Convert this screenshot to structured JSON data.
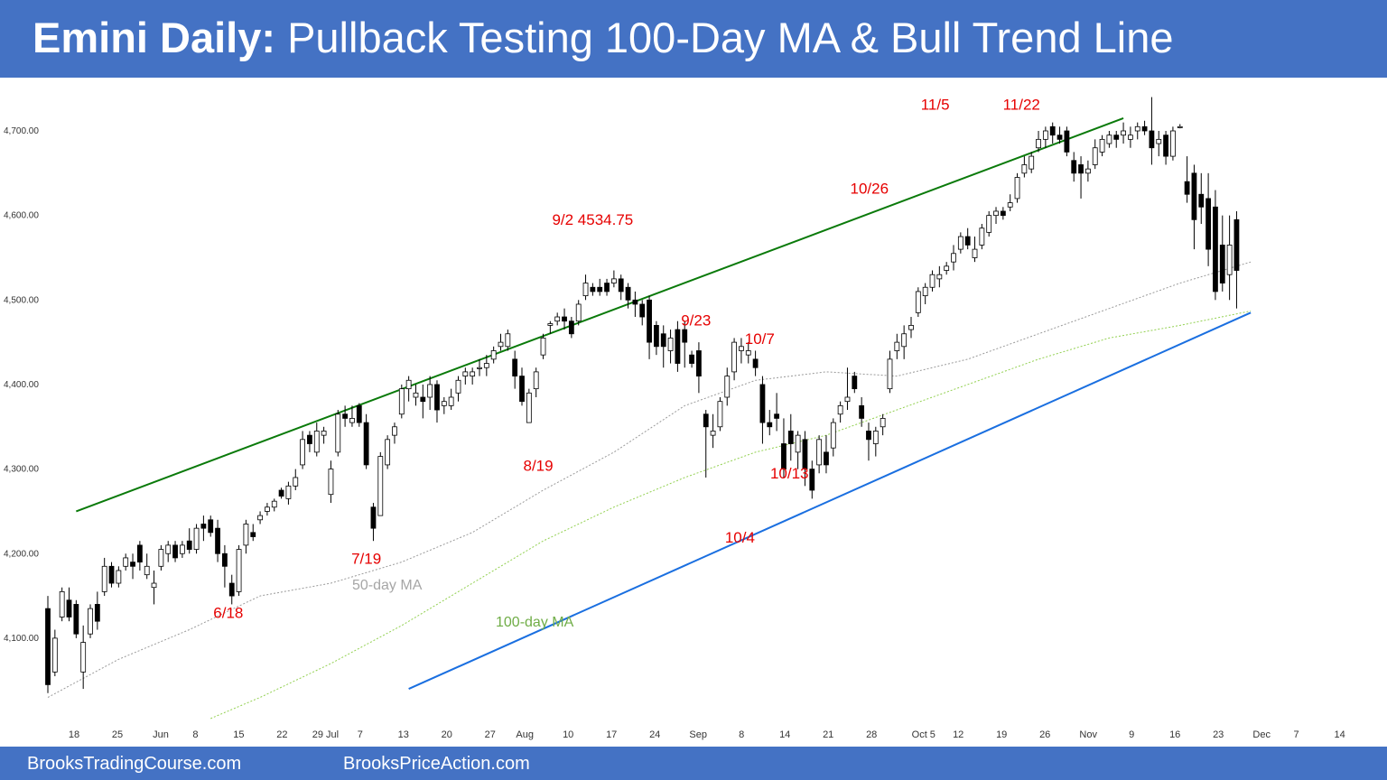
{
  "header": {
    "title_bold": "Emini Daily:",
    "title_rest": " Pullback Testing 100-Day MA & Bull Trend Line"
  },
  "footer": {
    "left": "BrooksTradingCourse.com",
    "right": "BrooksPriceAction.com"
  },
  "colors": {
    "header_bg": "#4472c4",
    "bull_trend_line": "#0a7a0a",
    "support_line": "#1a6fe0",
    "ma50": "#9a9a9a",
    "ma100": "#92d050",
    "annotation": "#e60000"
  },
  "chart_data": {
    "type": "candlestick",
    "title": "Emini Daily: Pullback Testing 100-Day MA & Bull Trend Line",
    "ylim": [
      4000,
      4760
    ],
    "y_ticks": [
      4100,
      4200,
      4300,
      4400,
      4500,
      4600,
      4700
    ],
    "y_tick_labels": [
      "4,100.00",
      "4,200.00",
      "4,300.00",
      "4,400.00",
      "4,500.00",
      "4,600.00",
      "4,700.00"
    ],
    "x_tick_labels": [
      "18",
      "25",
      "Jun",
      "8",
      "15",
      "22",
      "29 Jul",
      "7",
      "13",
      "20",
      "27",
      "Aug",
      "10",
      "17",
      "24",
      "Sep",
      "8",
      "14",
      "21",
      "28",
      "Oct 5",
      "12",
      "19",
      "26",
      "Nov",
      "9",
      "16",
      "23",
      "Dec",
      "7",
      "14"
    ],
    "candles": [
      [
        4135,
        4150,
        4035,
        4045
      ],
      [
        4060,
        4110,
        4055,
        4100
      ],
      [
        4125,
        4160,
        4120,
        4155
      ],
      [
        4145,
        4160,
        4120,
        4125
      ],
      [
        4140,
        4145,
        4100,
        4105
      ],
      [
        4060,
        4115,
        4040,
        4095
      ],
      [
        4105,
        4140,
        4100,
        4135
      ],
      [
        4140,
        4155,
        4110,
        4120
      ],
      [
        4155,
        4195,
        4150,
        4185
      ],
      [
        4185,
        4190,
        4160,
        4165
      ],
      [
        4165,
        4185,
        4160,
        4180
      ],
      [
        4185,
        4200,
        4180,
        4195
      ],
      [
        4190,
        4200,
        4170,
        4185
      ],
      [
        4210,
        4215,
        4180,
        4190
      ],
      [
        4175,
        4200,
        4170,
        4185
      ],
      [
        4160,
        4180,
        4140,
        4165
      ],
      [
        4185,
        4210,
        4180,
        4205
      ],
      [
        4200,
        4215,
        4190,
        4210
      ],
      [
        4210,
        4215,
        4190,
        4195
      ],
      [
        4200,
        4215,
        4195,
        4210
      ],
      [
        4215,
        4230,
        4200,
        4205
      ],
      [
        4205,
        4235,
        4200,
        4230
      ],
      [
        4235,
        4245,
        4215,
        4230
      ],
      [
        4240,
        4245,
        4220,
        4225
      ],
      [
        4230,
        4240,
        4190,
        4200
      ],
      [
        4200,
        4210,
        4160,
        4185
      ],
      [
        4165,
        4175,
        4140,
        4150
      ],
      [
        4155,
        4210,
        4150,
        4205
      ],
      [
        4210,
        4240,
        4200,
        4235
      ],
      [
        4225,
        4235,
        4215,
        4220
      ],
      [
        4240,
        4250,
        4235,
        4245
      ],
      [
        4250,
        4260,
        4245,
        4255
      ],
      [
        4255,
        4265,
        4250,
        4262
      ],
      [
        4275,
        4278,
        4265,
        4268
      ],
      [
        4265,
        4285,
        4258,
        4280
      ],
      [
        4280,
        4300,
        4275,
        4290
      ],
      [
        4305,
        4345,
        4300,
        4335
      ],
      [
        4340,
        4345,
        4320,
        4330
      ],
      [
        4320,
        4355,
        4315,
        4345
      ],
      [
        4340,
        4350,
        4330,
        4345
      ],
      [
        4270,
        4310,
        4260,
        4300
      ],
      [
        4320,
        4370,
        4315,
        4365
      ],
      [
        4365,
        4375,
        4350,
        4360
      ],
      [
        4355,
        4375,
        4350,
        4360
      ],
      [
        4375,
        4378,
        4350,
        4355
      ],
      [
        4355,
        4365,
        4300,
        4305
      ],
      [
        4255,
        4260,
        4215,
        4230
      ],
      [
        4245,
        4320,
        4245,
        4315
      ],
      [
        4305,
        4340,
        4300,
        4335
      ],
      [
        4340,
        4355,
        4330,
        4350
      ],
      [
        4365,
        4400,
        4360,
        4395
      ],
      [
        4395,
        4410,
        4380,
        4405
      ],
      [
        4385,
        4400,
        4375,
        4390
      ],
      [
        4385,
        4400,
        4360,
        4380
      ],
      [
        4385,
        4410,
        4370,
        4400
      ],
      [
        4400,
        4405,
        4355,
        4370
      ],
      [
        4375,
        4385,
        4365,
        4380
      ],
      [
        4375,
        4395,
        4370,
        4385
      ],
      [
        4390,
        4410,
        4380,
        4405
      ],
      [
        4410,
        4420,
        4400,
        4415
      ],
      [
        4410,
        4420,
        4400,
        4415
      ],
      [
        4420,
        4430,
        4410,
        4420
      ],
      [
        4420,
        4435,
        4410,
        4425
      ],
      [
        4430,
        4445,
        4425,
        4440
      ],
      [
        4445,
        4460,
        4440,
        4450
      ],
      [
        4445,
        4465,
        4440,
        4460
      ],
      [
        4430,
        4440,
        4395,
        4410
      ],
      [
        4410,
        4420,
        4375,
        4380
      ],
      [
        4355,
        4395,
        4355,
        4390
      ],
      [
        4395,
        4420,
        4385,
        4415
      ],
      [
        4435,
        4460,
        4430,
        4455
      ],
      [
        4470,
        4475,
        4460,
        4472
      ],
      [
        4475,
        4485,
        4470,
        4480
      ],
      [
        4480,
        4490,
        4465,
        4475
      ],
      [
        4475,
        4480,
        4455,
        4460
      ],
      [
        4475,
        4500,
        4470,
        4495
      ],
      [
        4505,
        4530,
        4500,
        4520
      ],
      [
        4515,
        4520,
        4505,
        4510
      ],
      [
        4515,
        4525,
        4505,
        4510
      ],
      [
        4520,
        4525,
        4505,
        4510
      ],
      [
        4520,
        4535,
        4515,
        4525
      ],
      [
        4525,
        4530,
        4500,
        4510
      ],
      [
        4515,
        4520,
        4490,
        4500
      ],
      [
        4500,
        4510,
        4480,
        4495
      ],
      [
        4495,
        4500,
        4470,
        4480
      ],
      [
        4500,
        4505,
        4430,
        4450
      ],
      [
        4470,
        4475,
        4435,
        4445
      ],
      [
        4460,
        4470,
        4420,
        4445
      ],
      [
        4440,
        4465,
        4425,
        4455
      ],
      [
        4465,
        4475,
        4415,
        4425
      ],
      [
        4465,
        4475,
        4420,
        4450
      ],
      [
        4435,
        4440,
        4420,
        4425
      ],
      [
        4440,
        4450,
        4390,
        4410
      ],
      [
        4365,
        4370,
        4290,
        4350
      ],
      [
        4340,
        4365,
        4325,
        4345
      ],
      [
        4350,
        4385,
        4345,
        4380
      ],
      [
        4385,
        4420,
        4375,
        4410
      ],
      [
        4415,
        4455,
        4405,
        4450
      ],
      [
        4440,
        4455,
        4425,
        4445
      ],
      [
        4435,
        4450,
        4425,
        4440
      ],
      [
        4430,
        4440,
        4410,
        4420
      ],
      [
        4400,
        4410,
        4330,
        4355
      ],
      [
        4355,
        4370,
        4340,
        4350
      ],
      [
        4365,
        4390,
        4345,
        4360
      ],
      [
        4330,
        4360,
        4290,
        4300
      ],
      [
        4345,
        4365,
        4310,
        4330
      ],
      [
        4320,
        4345,
        4300,
        4340
      ],
      [
        4335,
        4345,
        4280,
        4300
      ],
      [
        4300,
        4310,
        4265,
        4275
      ],
      [
        4305,
        4340,
        4295,
        4335
      ],
      [
        4320,
        4340,
        4295,
        4305
      ],
      [
        4325,
        4360,
        4315,
        4355
      ],
      [
        4365,
        4380,
        4355,
        4375
      ],
      [
        4380,
        4420,
        4370,
        4385
      ],
      [
        4410,
        4415,
        4390,
        4395
      ],
      [
        4375,
        4385,
        4350,
        4360
      ],
      [
        4345,
        4355,
        4310,
        4335
      ],
      [
        4330,
        4350,
        4315,
        4345
      ],
      [
        4350,
        4365,
        4340,
        4360
      ],
      [
        4395,
        4440,
        4390,
        4430
      ],
      [
        4440,
        4460,
        4430,
        4450
      ],
      [
        4445,
        4470,
        4430,
        4460
      ],
      [
        4465,
        4480,
        4455,
        4470
      ],
      [
        4485,
        4515,
        4480,
        4510
      ],
      [
        4505,
        4520,
        4495,
        4515
      ],
      [
        4515,
        4535,
        4510,
        4530
      ],
      [
        4525,
        4540,
        4515,
        4530
      ],
      [
        4535,
        4545,
        4530,
        4540
      ],
      [
        4545,
        4565,
        4535,
        4555
      ],
      [
        4560,
        4580,
        4555,
        4575
      ],
      [
        4575,
        4585,
        4560,
        4565
      ],
      [
        4550,
        4575,
        4545,
        4560
      ],
      [
        4565,
        4590,
        4560,
        4585
      ],
      [
        4580,
        4605,
        4575,
        4600
      ],
      [
        4600,
        4610,
        4590,
        4605
      ],
      [
        4605,
        4610,
        4595,
        4600
      ],
      [
        4610,
        4625,
        4605,
        4615
      ],
      [
        4620,
        4650,
        4615,
        4645
      ],
      [
        4650,
        4670,
        4645,
        4660
      ],
      [
        4655,
        4675,
        4650,
        4670
      ],
      [
        4680,
        4700,
        4675,
        4690
      ],
      [
        4690,
        4705,
        4680,
        4700
      ],
      [
        4705,
        4710,
        4685,
        4695
      ],
      [
        4695,
        4705,
        4685,
        4690
      ],
      [
        4700,
        4705,
        4670,
        4675
      ],
      [
        4665,
        4675,
        4640,
        4650
      ],
      [
        4660,
        4670,
        4620,
        4650
      ],
      [
        4650,
        4665,
        4640,
        4655
      ],
      [
        4660,
        4690,
        4655,
        4680
      ],
      [
        4675,
        4695,
        4670,
        4690
      ],
      [
        4685,
        4700,
        4680,
        4695
      ],
      [
        4695,
        4700,
        4680,
        4690
      ],
      [
        4695,
        4710,
        4685,
        4700
      ],
      [
        4690,
        4705,
        4680,
        4695
      ],
      [
        4700,
        4710,
        4690,
        4705
      ],
      [
        4705,
        4712,
        4695,
        4700
      ],
      [
        4700,
        4740,
        4660,
        4680
      ],
      [
        4685,
        4700,
        4670,
        4690
      ],
      [
        4695,
        4700,
        4660,
        4670
      ],
      [
        4670,
        4705,
        4665,
        4700
      ],
      [
        4705,
        4708,
        4703,
        4705
      ],
      [
        4640,
        4670,
        4615,
        4625
      ],
      [
        4650,
        4660,
        4560,
        4595
      ],
      [
        4625,
        4650,
        4590,
        4610
      ],
      [
        4620,
        4650,
        4540,
        4560
      ],
      [
        4610,
        4630,
        4500,
        4510
      ],
      [
        4565,
        4600,
        4510,
        4520
      ],
      [
        4530,
        4600,
        4500,
        4565
      ],
      [
        4595,
        4605,
        4490,
        4535
      ]
    ],
    "ma50": [
      [
        0,
        4030
      ],
      [
        10,
        4075
      ],
      [
        20,
        4110
      ],
      [
        30,
        4150
      ],
      [
        40,
        4165
      ],
      [
        50,
        4190
      ],
      [
        60,
        4225
      ],
      [
        70,
        4275
      ],
      [
        80,
        4320
      ],
      [
        90,
        4375
      ],
      [
        100,
        4405
      ],
      [
        110,
        4415
      ],
      [
        120,
        4410
      ],
      [
        130,
        4430
      ],
      [
        140,
        4460
      ],
      [
        150,
        4490
      ],
      [
        160,
        4520
      ],
      [
        170,
        4545
      ]
    ],
    "ma100": [
      [
        23,
        4005
      ],
      [
        30,
        4030
      ],
      [
        40,
        4070
      ],
      [
        50,
        4115
      ],
      [
        60,
        4165
      ],
      [
        70,
        4215
      ],
      [
        80,
        4255
      ],
      [
        90,
        4290
      ],
      [
        100,
        4320
      ],
      [
        110,
        4340
      ],
      [
        120,
        4370
      ],
      [
        130,
        4400
      ],
      [
        140,
        4430
      ],
      [
        150,
        4455
      ],
      [
        160,
        4470
      ],
      [
        170,
        4487
      ]
    ],
    "bull_trend_line": [
      [
        4,
        4250
      ],
      [
        152,
        4715
      ]
    ],
    "support_line": [
      [
        51,
        4040
      ],
      [
        170,
        4485
      ]
    ],
    "line_labels": [
      "50-day MA",
      "100-day MA"
    ],
    "annotations": [
      {
        "text": "6/18",
        "x": 25.5,
        "y": 4124
      },
      {
        "text": "7/19",
        "x": 45,
        "y": 4188
      },
      {
        "text": "8/19",
        "x": 69.3,
        "y": 4298
      },
      {
        "text": "9/2 4534.75",
        "x": 77,
        "y": 4589
      },
      {
        "text": "9/23",
        "x": 91.6,
        "y": 4470
      },
      {
        "text": "10/4",
        "x": 97.8,
        "y": 4213
      },
      {
        "text": "10/7",
        "x": 100.6,
        "y": 4448
      },
      {
        "text": "10/13",
        "x": 104.8,
        "y": 4289
      },
      {
        "text": "10/26",
        "x": 116.1,
        "y": 4626
      },
      {
        "text": "11/5",
        "x": 125.4,
        "y": 4725
      },
      {
        "text": "11/22",
        "x": 137.6,
        "y": 4725
      }
    ]
  }
}
